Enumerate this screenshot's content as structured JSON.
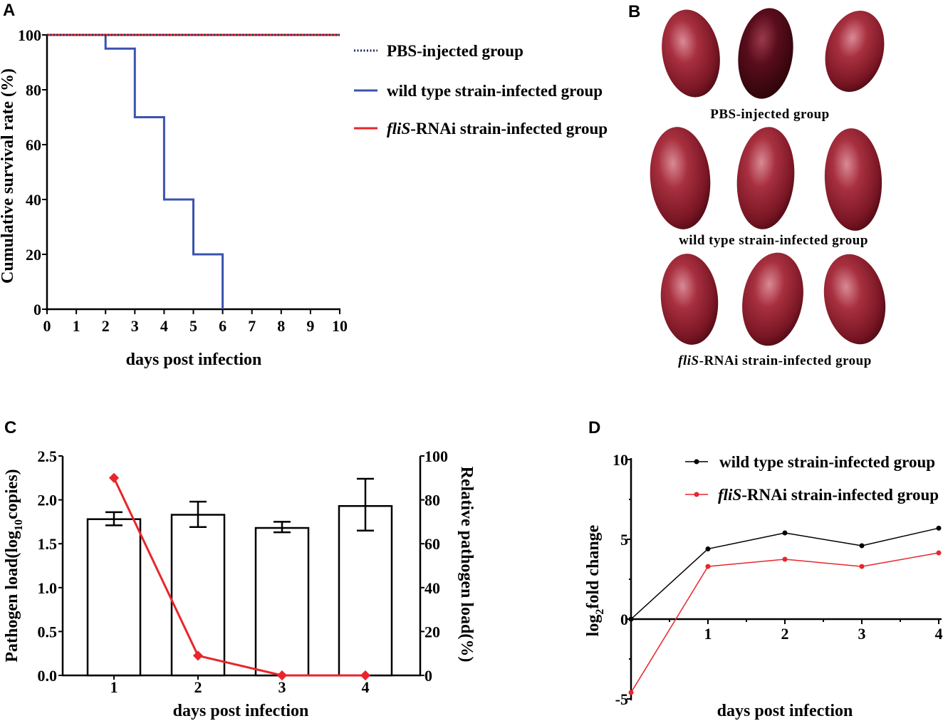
{
  "panels": {
    "a": "A",
    "b": "B",
    "c": "C",
    "d": "D"
  },
  "photo_labels": {
    "pbs": "PBS-injected group",
    "wild": "wild  type strain-infected group",
    "flis_italic": "fliS",
    "flis_rest": "-RNAi strain-infected group"
  },
  "colors": {
    "wild_type": "#3a53b0",
    "flis": "#e8262b",
    "pbs": "#1a2a55",
    "black": "#000000"
  },
  "chart_data": [
    {
      "panel": "A",
      "type": "line",
      "step": true,
      "xlabel": "days post infection",
      "ylabel": "Cumulative survival rate (%)",
      "xlim": [
        0,
        10
      ],
      "ylim": [
        0,
        100
      ],
      "xticks": [
        "0",
        "1",
        "2",
        "3",
        "4",
        "5",
        "6",
        "7",
        "8",
        "9",
        "10"
      ],
      "yticks": [
        "0",
        "20",
        "40",
        "60",
        "80",
        "100"
      ],
      "legend": "right",
      "series": [
        {
          "name": "PBS-injected group",
          "style": "dotted",
          "color": "#1a2a55",
          "x": [
            0,
            10
          ],
          "y": [
            100,
            100
          ]
        },
        {
          "name": "wild  type strain-infected group",
          "style": "solid",
          "color": "#3a53b0",
          "x": [
            0,
            2,
            3,
            4,
            5,
            6
          ],
          "y": [
            100,
            95,
            70,
            40,
            20,
            0
          ]
        },
        {
          "name_italic": "fliS",
          "name_rest": "-RNAi strain-infected group",
          "style": "solid",
          "color": "#e8262b",
          "x": [
            0,
            10
          ],
          "y": [
            100,
            100
          ]
        }
      ]
    },
    {
      "panel": "C",
      "type": "bar",
      "categories": [
        "1",
        "2",
        "3",
        "4"
      ],
      "xlabel": "days post infection",
      "ylabel_parts": [
        "Pathogen load(log",
        "10",
        "copies)"
      ],
      "ylabel_right": "Relative pathogen load(%)",
      "ylim": [
        0,
        2.5
      ],
      "ylim_right": [
        0,
        100
      ],
      "yticks": [
        "0.0",
        "0.5",
        "1.0",
        "1.5",
        "2.0",
        "2.5"
      ],
      "yticks_right": [
        "0",
        "20",
        "40",
        "60",
        "80",
        "100"
      ],
      "bars": {
        "values": [
          1.78,
          1.83,
          1.68,
          1.93
        ],
        "err_low": [
          1.71,
          1.69,
          1.63,
          1.65
        ],
        "err_high": [
          1.86,
          1.98,
          1.75,
          2.24
        ]
      },
      "line_right": {
        "values": [
          90,
          9,
          0,
          0
        ],
        "color": "#e8262b"
      }
    },
    {
      "panel": "D",
      "type": "line",
      "xlabel": "days post infection",
      "ylabel_parts": [
        "log",
        "2",
        "fold change"
      ],
      "xlim": [
        0,
        4
      ],
      "ylim": [
        -5,
        10
      ],
      "xticks": [
        "1",
        "2",
        "3",
        "4"
      ],
      "yticks": [
        "-5",
        "0",
        "5",
        "10"
      ],
      "legend": "top-right",
      "series": [
        {
          "name": "wild  type strain-infected group",
          "color": "#000000",
          "x": [
            0,
            1,
            2,
            3,
            4
          ],
          "y": [
            0,
            4.4,
            5.4,
            4.6,
            5.7
          ]
        },
        {
          "name_italic": "fliS",
          "name_rest": "-RNAi strain-infected group",
          "color": "#e8262b",
          "x": [
            0,
            1,
            2,
            3,
            4
          ],
          "y": [
            -4.6,
            3.3,
            3.75,
            3.3,
            4.15
          ]
        }
      ]
    }
  ]
}
